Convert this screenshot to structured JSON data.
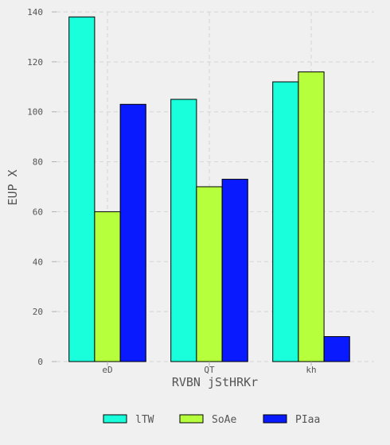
{
  "chart_data": {
    "type": "bar",
    "categories": [
      "eD",
      "QT",
      "kh"
    ],
    "series": [
      {
        "name": "lTW",
        "values": [
          138,
          105,
          112
        ],
        "color": "#1affdb"
      },
      {
        "name": "SoAe",
        "values": [
          60,
          70,
          116
        ],
        "color": "#b5ff3d"
      },
      {
        "name": "PIaa",
        "values": [
          103,
          73,
          10
        ],
        "color": "#0a1aff"
      }
    ],
    "xlabel": "RVBN jStHRKr",
    "ylabel": "EUP X",
    "ylim": [
      0,
      140
    ],
    "yticks": [
      0,
      20,
      40,
      60,
      80,
      100,
      120,
      140
    ],
    "grid": true,
    "legend_position": "bottom"
  }
}
